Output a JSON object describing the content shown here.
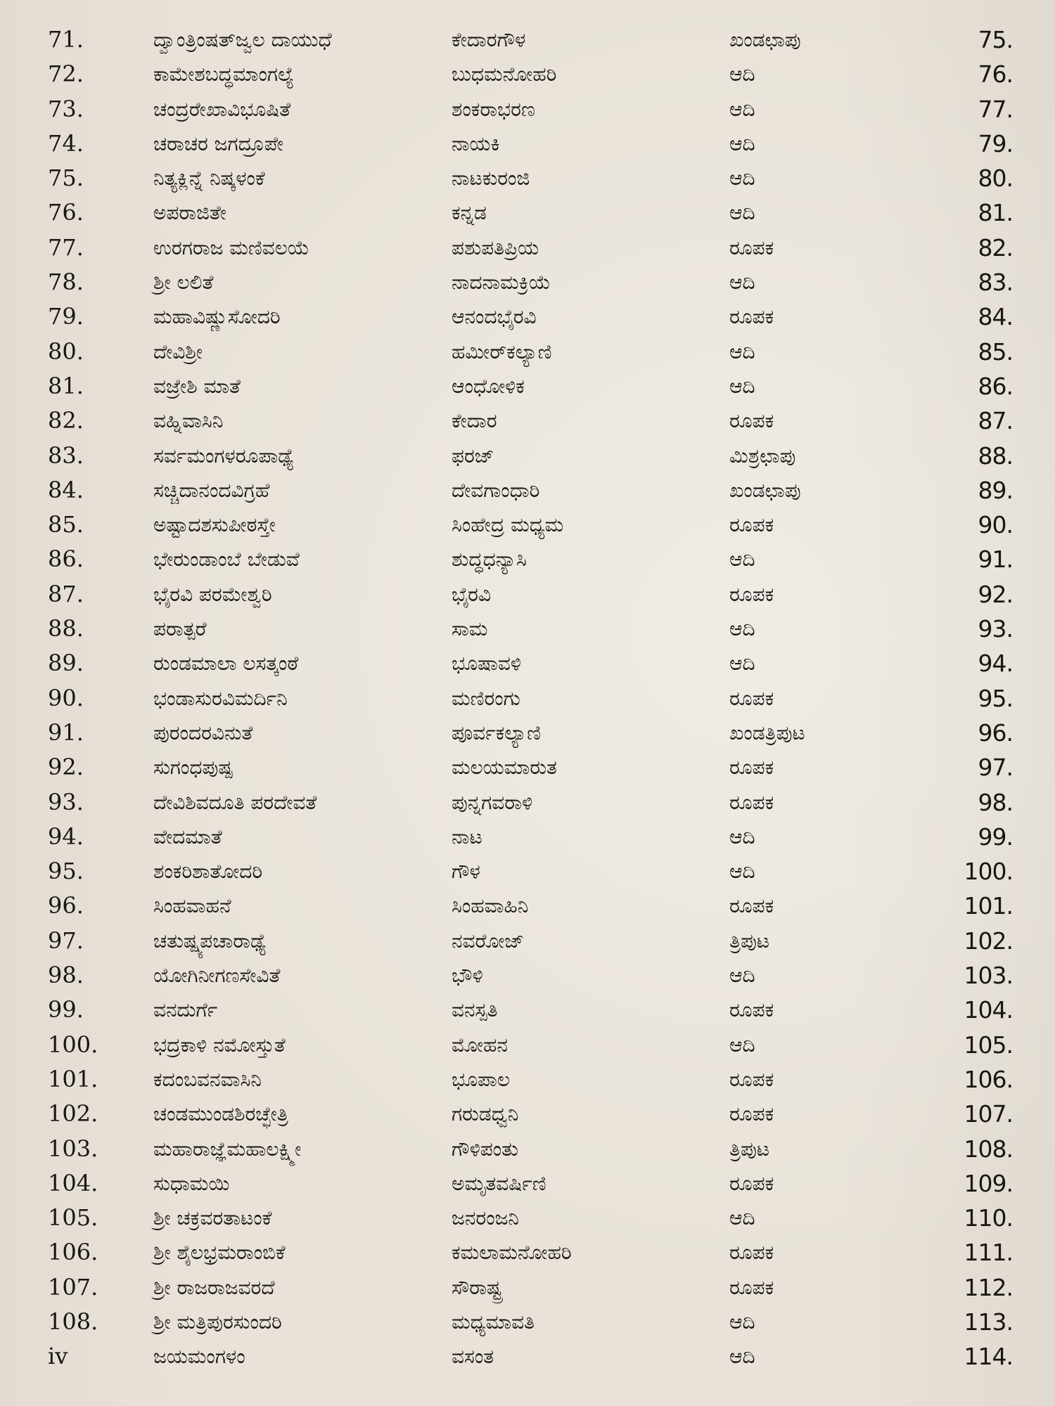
{
  "toc": {
    "rows": [
      {
        "no": "71.",
        "title": "ದ್ವಾಂತ್ರಿಂಷತ್‌ಜ್ವಲ ದಾಯುಧೆ",
        "raga": "ಕೇದಾರಗೌಳ",
        "tala": "ಖಂಡಛಾಪು",
        "page": "75."
      },
      {
        "no": "72.",
        "title": "ಕಾಮೇಶಬದ್ಧಮಾಂಗಲ್ಯೆ",
        "raga": "ಬುಧಮನೋಹರಿ",
        "tala": "ಆದಿ",
        "page": "76."
      },
      {
        "no": "73.",
        "title": "ಚಂದ್ರರೇಖಾವಿಭೂಷಿತೆ",
        "raga": "ಶಂಕರಾಭರಣ",
        "tala": "ಆದಿ",
        "page": "77."
      },
      {
        "no": "74.",
        "title": "ಚರಾಚರ ಜಗದ್ರೂಪೇ",
        "raga": "ನಾಯಕಿ",
        "tala": "ಆದಿ",
        "page": "79."
      },
      {
        "no": "75.",
        "title": "ನಿತ್ಯಕ್ಲಿನ್ನೆ ನಿಷ್ಕಳಂಕೆ",
        "raga": "ನಾಟಕುರಂಜಿ",
        "tala": "ಆದಿ",
        "page": "80."
      },
      {
        "no": "76.",
        "title": "ಅಪರಾಜಿತೇ",
        "raga": "ಕನ್ನಡ",
        "tala": "ಆದಿ",
        "page": "81."
      },
      {
        "no": "77.",
        "title": "ಉರಗರಾಜ ಮಣಿವಲಯೆ",
        "raga": "ಪಶುಪತಿಪ್ರಿಯ",
        "tala": "ರೂಪಕ",
        "page": "82."
      },
      {
        "no": "78.",
        "title": "ಶ್ರೀ ಲಲಿತೆ",
        "raga": "ನಾದನಾಮಕ್ರಿಯೆ",
        "tala": "ಆದಿ",
        "page": "83."
      },
      {
        "no": "79.",
        "title": "ಮಹಾವಿಷ್ಣುಸೋದರಿ",
        "raga": "ಆನಂದಭೈರವಿ",
        "tala": "ರೂಪಕ",
        "page": "84."
      },
      {
        "no": "80.",
        "title": "ದೇವಿಶ್ರೀ",
        "raga": "ಹಮೀರ್‌ಕಲ್ಯಾಣಿ",
        "tala": "ಆದಿ",
        "page": "85."
      },
      {
        "no": "81.",
        "title": "ವಜ್ರೇಶಿ ಮಾತೆ",
        "raga": "ಆಂಧೋಳಿಕ",
        "tala": "ಆದಿ",
        "page": "86."
      },
      {
        "no": "82.",
        "title": "ವಹ್ನಿವಾಸಿನಿ",
        "raga": "ಕೇದಾರ",
        "tala": "ರೂಪಕ",
        "page": "87."
      },
      {
        "no": "83.",
        "title": "ಸರ್ವಮಂಗಳರೂಪಾಢ್ಯೆ",
        "raga": "ಫರಜ್",
        "tala": "ಮಿಶ್ರಛಾಪು",
        "page": "88."
      },
      {
        "no": "84.",
        "title": "ಸಚ್ಚಿದಾನಂದವಿಗ್ರಹೆ",
        "raga": "ದೇವಗಾಂಧಾರಿ",
        "tala": "ಖಂಡಛಾಪು",
        "page": "89."
      },
      {
        "no": "85.",
        "title": "ಅಷ್ಟಾದಶಸುಪೀಠಸ್ತೇ",
        "raga": "ಸಿಂಹೇದ್ರ ಮಧ್ಯಮ",
        "tala": "ರೂಪಕ",
        "page": "90."
      },
      {
        "no": "86.",
        "title": "ಭೇರುಂಡಾಂಬೆ ಬೇಡುವೆ",
        "raga": "ಶುದ್ಧಧನ್ಯಾಸಿ",
        "tala": "ಆದಿ",
        "page": "91."
      },
      {
        "no": "87.",
        "title": "ಭೈರವಿ ಪರಮೇಶ್ವರಿ",
        "raga": "ಭೈರವಿ",
        "tala": "ರೂಪಕ",
        "page": "92."
      },
      {
        "no": "88.",
        "title": "ಪರಾತ್ಪರೆ",
        "raga": "ಸಾಮ",
        "tala": "ಆದಿ",
        "page": "93."
      },
      {
        "no": "89.",
        "title": "ರುಂಡಮಾಲಾ ಲಸತ್ಕಂಠೆ",
        "raga": "ಭೂಷಾವಳಿ",
        "tala": "ಆದಿ",
        "page": "94."
      },
      {
        "no": "90.",
        "title": "ಭಂಡಾಸುರವಿಮರ್ದಿನಿ",
        "raga": "ಮಣಿರಂಗು",
        "tala": "ರೂಪಕ",
        "page": "95."
      },
      {
        "no": "91.",
        "title": "ಪುರಂದರವಿನುತೆ",
        "raga": "ಪೂರ್ವಕಲ್ಯಾಣಿ",
        "tala": "ಖಂಡತ್ರಿಪುಟ",
        "page": "96."
      },
      {
        "no": "92.",
        "title": "ಸುಗಂಧಪುಷ್ಪ",
        "raga": "ಮಲಯಮಾರುತ",
        "tala": "ರೂಪಕ",
        "page": "97."
      },
      {
        "no": "93.",
        "title": "ದೇವಿಶಿವದೂತಿ ಪರದೇವತೆ",
        "raga": "ಪುನ್ನಗವರಾಳಿ",
        "tala": "ರೂಪಕ",
        "page": "98."
      },
      {
        "no": "94.",
        "title": "ವೇದಮಾತೆ",
        "raga": "ನಾಟ",
        "tala": "ಆದಿ",
        "page": "99."
      },
      {
        "no": "95.",
        "title": "ಶಂಕರಿಶಾತೋದರಿ",
        "raga": "ಗೌಳ",
        "tala": "ಆದಿ",
        "page": "100."
      },
      {
        "no": "96.",
        "title": "ಸಿಂಹವಾಹನೆ",
        "raga": "ಸಿಂಹವಾಹಿನಿ",
        "tala": "ರೂಪಕ",
        "page": "101."
      },
      {
        "no": "97.",
        "title": "ಚತುಷ್ಷ್ಯಪಚಾರಾಢ್ಯೆ",
        "raga": "ನವರೋಜ್",
        "tala": "ತ್ರಿಪುಟ",
        "page": "102."
      },
      {
        "no": "98.",
        "title": "ಯೋಗಿನೀಗಣಸೇವಿತೆ",
        "raga": "ಭೌಳಿ",
        "tala": "ಆದಿ",
        "page": "103."
      },
      {
        "no": "99.",
        "title": "ವನದುರ್ಗೆ",
        "raga": "ವನಸ್ಪತಿ",
        "tala": "ರೂಪಕ",
        "page": "104."
      },
      {
        "no": "100.",
        "title": "ಭದ್ರಕಾಳಿ ನಮೋಸ್ತುತೆ",
        "raga": "ಮೋಹನ",
        "tala": "ಆದಿ",
        "page": "105."
      },
      {
        "no": "101.",
        "title": "ಕದಂಬವನವಾಸಿನಿ",
        "raga": "ಭೂಪಾಲ",
        "tala": "ರೂಪಕ",
        "page": "106."
      },
      {
        "no": "102.",
        "title": "ಚಂಡಮುಂಡಶಿರಚ್ಛೇತ್ರಿ",
        "raga": "ಗರುಡಧ್ವನಿ",
        "tala": "ರೂಪಕ",
        "page": "107."
      },
      {
        "no": "103.",
        "title": "ಮಹಾರಾಜ್ಞೆಮಹಾಲಕ್ಷ್ಮೀ",
        "raga": "ಗೌಳಿಪಂತು",
        "tala": "ತ್ರಿಪುಟ",
        "page": "108."
      },
      {
        "no": "104.",
        "title": "ಸುಧಾಮಯಿ",
        "raga": "ಅಮೃತವರ್ಷಿಣಿ",
        "tala": "ರೂಪಕ",
        "page": "109."
      },
      {
        "no": "105.",
        "title": "ಶ್ರೀ ಚಕ್ರವರತಾಟಂಕೆ",
        "raga": "ಜನರಂಜನಿ",
        "tala": "ಆದಿ",
        "page": "110."
      },
      {
        "no": "106.",
        "title": "ಶ್ರೀ ಶೈಲಭ್ರಮರಾಂಬಿಕೆ",
        "raga": "ಕಮಲಾಮನೋಹರಿ",
        "tala": "ರೂಪಕ",
        "page": "111."
      },
      {
        "no": "107.",
        "title": "ಶ್ರೀ ರಾಜರಾಜವರದೆ",
        "raga": "ಸೌರಾಷ್ಟ್ರ",
        "tala": "ರೂಪಕ",
        "page": "112."
      },
      {
        "no": "108.",
        "title": "ಶ್ರೀ ಮತ್ರಿಪುರಸುಂದರಿ",
        "raga": "ಮಧ್ಯಮಾವತಿ",
        "tala": "ಆದಿ",
        "page": "113."
      },
      {
        "no": "iv",
        "title": "ಜಯಮಂಗಳಂ",
        "raga": "ವಸಂತ",
        "tala": "ಆದಿ",
        "page": "114."
      }
    ]
  }
}
